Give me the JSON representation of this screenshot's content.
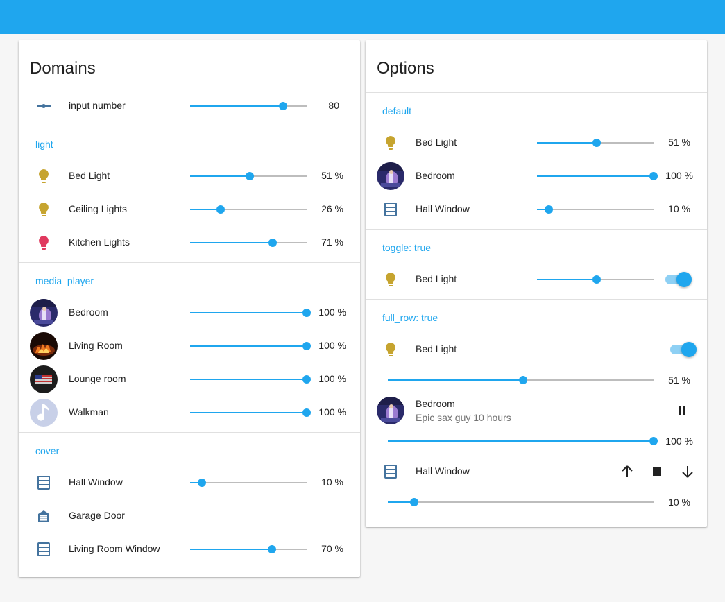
{
  "colors": {
    "header": "#1fa6ee",
    "accent": "#1fa6ee",
    "bulb_yellow": "#c6a42f",
    "bulb_red": "#e0395e",
    "cover_blue": "#44739e"
  },
  "domains": {
    "title": "Domains",
    "input_number": {
      "name": "input number",
      "icon": "ray-vertex-icon",
      "value": "80",
      "level": 0.8
    },
    "sections": {
      "light": "light",
      "media_player": "media_player",
      "cover": "cover"
    },
    "lights": [
      {
        "name": "Bed Light",
        "value": "51 %",
        "level": 0.51,
        "icon": "lightbulb-icon",
        "color": "#c6a42f"
      },
      {
        "name": "Ceiling Lights",
        "value": "26 %",
        "level": 0.26,
        "icon": "lightbulb-icon",
        "color": "#c6a42f"
      },
      {
        "name": "Kitchen Lights",
        "value": "71 %",
        "level": 0.71,
        "icon": "lightbulb-icon",
        "color": "#e0395e"
      }
    ],
    "media": [
      {
        "name": "Bedroom",
        "value": "100 %",
        "level": 1.0,
        "icon": "bedroom-artwork"
      },
      {
        "name": "Living Room",
        "value": "100 %",
        "level": 1.0,
        "icon": "fireplace-artwork"
      },
      {
        "name": "Lounge room",
        "value": "100 %",
        "level": 1.0,
        "icon": "flag-artwork"
      },
      {
        "name": "Walkman",
        "value": "100 %",
        "level": 1.0,
        "icon": "music-note-icon"
      }
    ],
    "covers": [
      {
        "name": "Hall Window",
        "value": "10 %",
        "level": 0.1,
        "icon": "window-shutter-icon"
      },
      {
        "name": "Garage Door",
        "icon": "garage-icon"
      },
      {
        "name": "Living Room Window",
        "value": "70 %",
        "level": 0.7,
        "icon": "window-shutter-icon"
      }
    ]
  },
  "options": {
    "title": "Options",
    "sections": {
      "default": "default",
      "toggle": "toggle: true",
      "full_row": "full_row: true"
    },
    "default_rows": [
      {
        "name": "Bed Light",
        "value": "51 %",
        "level": 0.51,
        "icon": "lightbulb-icon"
      },
      {
        "name": "Bedroom",
        "value": "100 %",
        "level": 1.0,
        "icon": "bedroom-artwork"
      },
      {
        "name": "Hall Window",
        "value": "10 %",
        "level": 0.1,
        "icon": "window-shutter-icon"
      }
    ],
    "toggle_row": {
      "name": "Bed Light",
      "level": 0.51,
      "toggle_on": true,
      "icon": "lightbulb-icon"
    },
    "full_row": {
      "light": {
        "name": "Bed Light",
        "value": "51 %",
        "level": 0.51,
        "toggle_on": true
      },
      "media": {
        "name": "Bedroom",
        "subtitle": "Epic sax guy 10 hours",
        "value": "100 %",
        "level": 1.0,
        "control": "pause-icon"
      },
      "cover": {
        "name": "Hall Window",
        "value": "10 %",
        "level": 0.1,
        "controls": [
          "arrow-up-icon",
          "stop-icon",
          "arrow-down-icon"
        ]
      }
    }
  }
}
